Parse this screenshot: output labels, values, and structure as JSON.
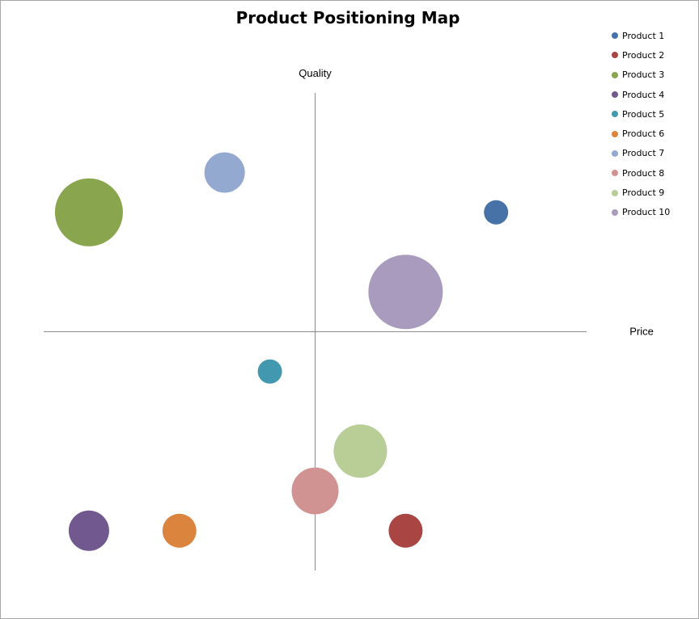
{
  "chart_data": {
    "type": "bubble",
    "title": "Product Positioning Map",
    "xlabel": "Price",
    "ylabel": "Quality",
    "xlim": [
      -6,
      6
    ],
    "ylim": [
      -6,
      6
    ],
    "grid": false,
    "legend_position": "right",
    "series": [
      {
        "name": "Product 1",
        "x": 4,
        "y": 3,
        "size": 15,
        "color": "#4672a8"
      },
      {
        "name": "Product 2",
        "x": 2,
        "y": -5,
        "size": 21,
        "color": "#a94643"
      },
      {
        "name": "Product 3",
        "x": -5,
        "y": 3,
        "size": 42,
        "color": "#89a54e"
      },
      {
        "name": "Product 4",
        "x": -5,
        "y": -5,
        "size": 25,
        "color": "#71588f"
      },
      {
        "name": "Product 5",
        "x": -1,
        "y": -1,
        "size": 15,
        "color": "#4198af"
      },
      {
        "name": "Product 6",
        "x": -3,
        "y": -5,
        "size": 21,
        "color": "#db843d"
      },
      {
        "name": "Product 7",
        "x": -2,
        "y": 4,
        "size": 25,
        "color": "#93a9cf"
      },
      {
        "name": "Product 8",
        "x": 0,
        "y": -4,
        "size": 29,
        "color": "#d19392"
      },
      {
        "name": "Product 9",
        "x": 1,
        "y": -3,
        "size": 33,
        "color": "#b9cd96"
      },
      {
        "name": "Product 10",
        "x": 2,
        "y": 1,
        "size": 46,
        "color": "#a99bbd"
      }
    ]
  }
}
